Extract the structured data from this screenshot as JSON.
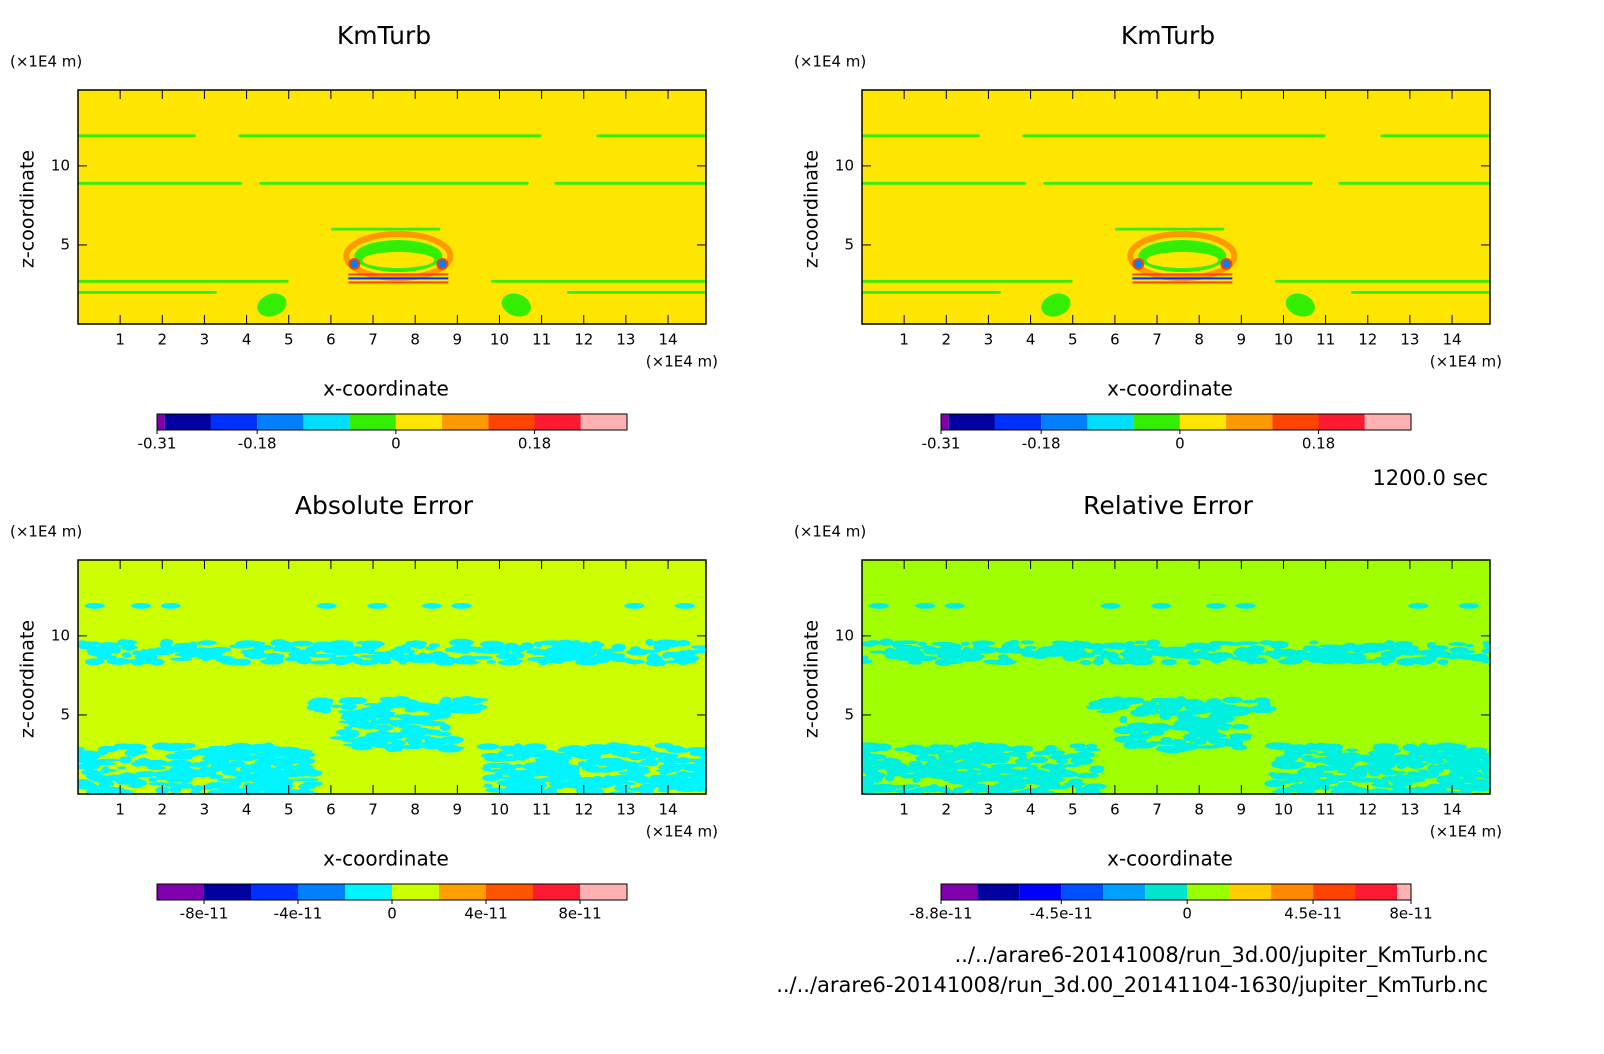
{
  "chart_data": [
    {
      "type": "contour",
      "title": "KmTurb",
      "xlabel": "x-coordinate",
      "ylabel": "z-coordinate",
      "x_unit": "(×1E4 m)",
      "y_unit": "(×1E4 m)",
      "xlim": [
        0,
        14.9
      ],
      "ylim": [
        0,
        14.8
      ],
      "xticks": [
        1,
        2,
        3,
        4,
        5,
        6,
        7,
        8,
        9,
        10,
        11,
        12,
        13,
        14
      ],
      "yticks": [
        5,
        10
      ],
      "levels": [
        -0.31,
        -0.3,
        -0.24,
        -0.18,
        -0.12,
        -0.06,
        0,
        0.06,
        0.12,
        0.18,
        0.24,
        0.3
      ],
      "level_colors": [
        "#8000b0",
        "#0000a0",
        "#0030ff",
        "#0080ff",
        "#00ddff",
        "#33ee00",
        "#ffe600",
        "#ff9900",
        "#ff4400",
        "#ff1a33",
        "#ffb0b0"
      ],
      "colorbar_ticks": [
        -0.31,
        -0.18,
        0,
        0.18
      ],
      "background_color": "#ffe600",
      "feature_color": "#33ee00"
    },
    {
      "type": "contour",
      "title": "KmTurb",
      "xlabel": "x-coordinate",
      "ylabel": "z-coordinate",
      "x_unit": "(×1E4 m)",
      "y_unit": "(×1E4 m)",
      "xlim": [
        0,
        14.9
      ],
      "ylim": [
        0,
        14.8
      ],
      "xticks": [
        1,
        2,
        3,
        4,
        5,
        6,
        7,
        8,
        9,
        10,
        11,
        12,
        13,
        14
      ],
      "yticks": [
        5,
        10
      ],
      "levels": [
        -0.31,
        -0.3,
        -0.24,
        -0.18,
        -0.12,
        -0.06,
        0,
        0.06,
        0.12,
        0.18,
        0.24,
        0.3
      ],
      "level_colors": [
        "#8000b0",
        "#0000a0",
        "#0030ff",
        "#0080ff",
        "#00ddff",
        "#33ee00",
        "#ffe600",
        "#ff9900",
        "#ff4400",
        "#ff1a33",
        "#ffb0b0"
      ],
      "colorbar_ticks": [
        -0.31,
        -0.18,
        0,
        0.18
      ],
      "background_color": "#ffe600",
      "feature_color": "#33ee00"
    },
    {
      "type": "contour",
      "title": "Absolute Error",
      "xlabel": "x-coordinate",
      "ylabel": "z-coordinate",
      "x_unit": "(×1E4 m)",
      "y_unit": "(×1E4 m)",
      "xlim": [
        0,
        14.9
      ],
      "ylim": [
        0,
        14.8
      ],
      "xticks": [
        1,
        2,
        3,
        4,
        5,
        6,
        7,
        8,
        9,
        10,
        11,
        12,
        13,
        14
      ],
      "yticks": [
        5,
        10
      ],
      "levels": [
        -1e-10,
        -8e-11,
        -6e-11,
        -4e-11,
        -2e-11,
        0,
        2e-11,
        4e-11,
        6e-11,
        8e-11,
        1e-10
      ],
      "level_colors": [
        "#8000b0",
        "#0000a0",
        "#0030ff",
        "#0080ff",
        "#00f5ff",
        "#ccff00",
        "#ffa000",
        "#ff5500",
        "#ff1a33",
        "#ffb0b0"
      ],
      "colorbar_ticks": [
        -8e-11,
        -4e-11,
        0,
        4e-11,
        8e-11
      ],
      "background_color": "#ccff00",
      "feature_color": "#00f5ff"
    },
    {
      "type": "contour",
      "title": "Relative Error",
      "xlabel": "x-coordinate",
      "ylabel": "z-coordinate",
      "x_unit": "(×1E4 m)",
      "y_unit": "(×1E4 m)",
      "xlim": [
        0,
        14.9
      ],
      "ylim": [
        0,
        14.8
      ],
      "xticks": [
        1,
        2,
        3,
        4,
        5,
        6,
        7,
        8,
        9,
        10,
        11,
        12,
        13,
        14
      ],
      "yticks": [
        5,
        10
      ],
      "levels": [
        -8.8e-11,
        -7.5e-11,
        -6e-11,
        -4.5e-11,
        -3e-11,
        -1.5e-11,
        0,
        1.5e-11,
        3e-11,
        4.5e-11,
        6e-11,
        7.5e-11,
        8e-11
      ],
      "level_colors": [
        "#8000b0",
        "#0000a0",
        "#0000ff",
        "#0050ff",
        "#00a0ff",
        "#00e5cc",
        "#99ff00",
        "#ffcc00",
        "#ff8800",
        "#ff4400",
        "#ff1a33",
        "#ffb0b0"
      ],
      "colorbar_ticks": [
        -8.8e-11,
        -4.5e-11,
        0,
        4.5e-11,
        8e-11
      ],
      "background_color": "#a0ff00",
      "feature_color": "#00f0e0"
    }
  ],
  "time_label": "1200.0 sec",
  "files": [
    "../../arare6-20141008/run_3d.00/jupiter_KmTurb.nc",
    "../../arare6-20141008/run_3d.00_20141104-1630/jupiter_KmTurb.nc"
  ]
}
